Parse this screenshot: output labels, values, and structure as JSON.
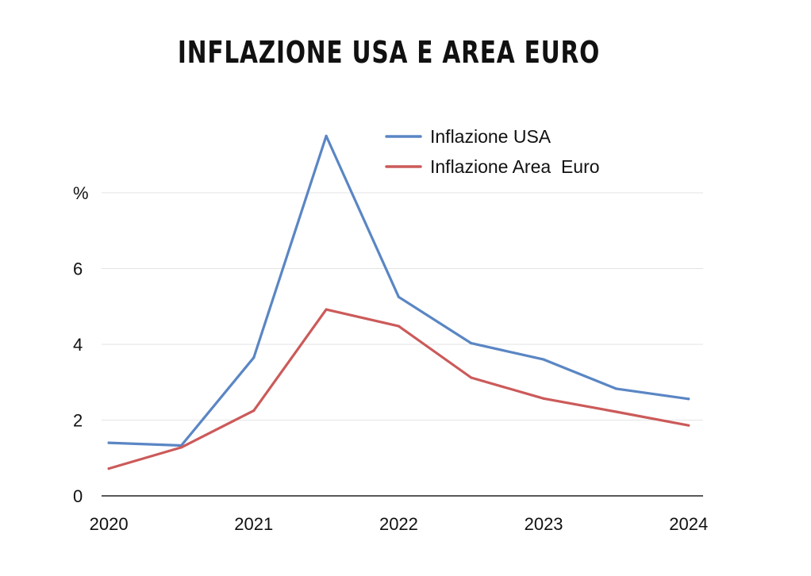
{
  "chart_data": {
    "type": "line",
    "title": "INFLAZIONE USA E AREA EURO",
    "ylabel": "%",
    "xlabel": "",
    "x": [
      2020.0,
      2020.5,
      2021.0,
      2021.5,
      2022.0,
      2022.5,
      2023.0,
      2023.5,
      2024.0
    ],
    "xlim": [
      2019.95,
      2024.1
    ],
    "ylim": [
      0,
      8
    ],
    "x_ticks": [
      {
        "value": 2020,
        "label": "2020"
      },
      {
        "value": 2021,
        "label": "2021"
      },
      {
        "value": 2022,
        "label": "2022"
      },
      {
        "value": 2023,
        "label": "2023"
      },
      {
        "value": 2024,
        "label": "2024"
      }
    ],
    "y_ticks": [
      {
        "value": 0,
        "label": "0"
      },
      {
        "value": 2,
        "label": "2"
      },
      {
        "value": 4,
        "label": "4"
      },
      {
        "value": 6,
        "label": "6"
      },
      {
        "value": 8,
        "label": "%"
      }
    ],
    "grid": true,
    "legend_position": "top-right",
    "series": [
      {
        "name": "Inflazione USA",
        "color": "#5a86c4",
        "values": [
          1.4,
          1.33,
          3.65,
          9.5,
          5.25,
          4.03,
          3.6,
          2.83,
          2.56
        ]
      },
      {
        "name": "Inflazione Area  Euro",
        "color": "#cc5a5a",
        "values": [
          0.72,
          1.28,
          2.25,
          4.92,
          4.48,
          3.12,
          2.57,
          2.22,
          1.86
        ]
      }
    ]
  }
}
